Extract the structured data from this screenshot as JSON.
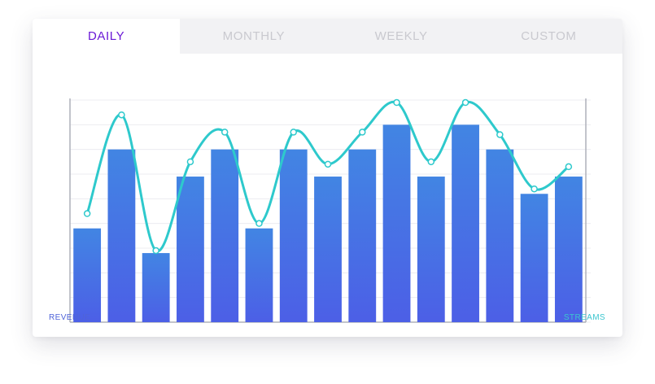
{
  "tabs": [
    {
      "label": "DAILY",
      "active": true
    },
    {
      "label": "MONTHLY",
      "active": false
    },
    {
      "label": "WEEKLY",
      "active": false
    },
    {
      "label": "CUSTOM",
      "active": false
    }
  ],
  "colors": {
    "active_tab": "#6a18d6",
    "inactive_tab": "#c9c9cf",
    "bar_top": "#4285e3",
    "bar_bottom": "#4c5fe6",
    "line": "#2ec9cc",
    "grid": "#ececf0",
    "axis": "#aeb0ba"
  },
  "chart_data": {
    "type": "bar",
    "grid": true,
    "ylim": [
      0,
      9
    ],
    "series": [
      {
        "name": "REVENUE",
        "type": "bar",
        "values": [
          3.8,
          7.0,
          2.8,
          5.9,
          7.0,
          3.8,
          7.0,
          5.9,
          7.0,
          8.0,
          5.9,
          8.0,
          7.0,
          5.2,
          5.9
        ]
      },
      {
        "name": "STREAMS",
        "type": "line",
        "smooth": true,
        "values": [
          4.4,
          8.4,
          2.9,
          6.5,
          7.7,
          4.0,
          7.7,
          6.4,
          7.7,
          8.9,
          6.5,
          8.9,
          7.6,
          5.4,
          6.3
        ]
      }
    ],
    "left_label": "REVENUE",
    "right_label": "STREAMS"
  }
}
